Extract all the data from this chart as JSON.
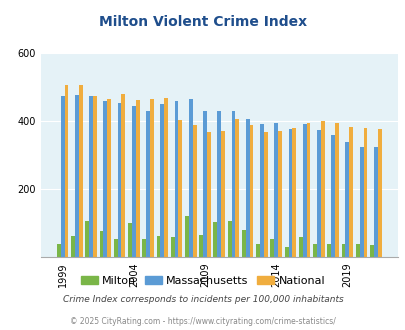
{
  "title": "Milton Violent Crime Index",
  "years": [
    1999,
    2000,
    2001,
    2002,
    2003,
    2004,
    2005,
    2006,
    2007,
    2008,
    2009,
    2010,
    2011,
    2012,
    2013,
    2014,
    2015,
    2016,
    2017,
    2018,
    2019,
    2020,
    2021
  ],
  "milton": [
    40,
    62,
    108,
    78,
    55,
    102,
    55,
    62,
    60,
    120,
    65,
    105,
    108,
    80,
    40,
    55,
    30,
    60,
    40,
    40,
    40,
    40,
    35
  ],
  "massachusetts": [
    472,
    475,
    472,
    460,
    452,
    445,
    430,
    450,
    458,
    465,
    428,
    430,
    428,
    406,
    392,
    393,
    378,
    392,
    375,
    360,
    337,
    325,
    325
  ],
  "national": [
    505,
    507,
    472,
    465,
    478,
    462,
    465,
    467,
    404,
    388,
    367,
    372,
    405,
    388,
    367,
    372,
    380,
    395,
    400,
    395,
    383,
    380,
    378
  ],
  "colors": {
    "milton": "#7ab648",
    "massachusetts": "#5b9bd5",
    "national": "#f0ad3e"
  },
  "bg_color": "#e5f2f7",
  "ylim": [
    0,
    600
  ],
  "yticks": [
    0,
    200,
    400,
    600
  ],
  "xlabel_ticks": [
    1999,
    2004,
    2009,
    2014,
    2019
  ],
  "footer1": "Crime Index corresponds to incidents per 100,000 inhabitants",
  "footer2": "© 2025 CityRating.com - https://www.cityrating.com/crime-statistics/",
  "title_color": "#1f4e8c",
  "legend_labels": [
    "Milton",
    "Massachusetts",
    "National"
  ]
}
